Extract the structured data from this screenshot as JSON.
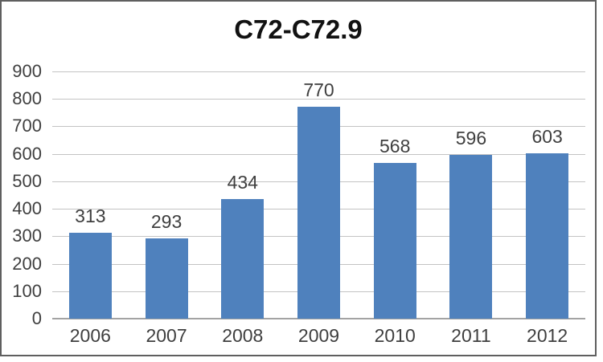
{
  "chart_data": {
    "type": "bar",
    "title": "C72-C72.9",
    "categories": [
      "2006",
      "2007",
      "2008",
      "2009",
      "2010",
      "2011",
      "2012"
    ],
    "values": [
      313,
      293,
      434,
      770,
      568,
      596,
      603
    ],
    "data_labels_visible": true,
    "xlabel": "",
    "ylabel": "",
    "ylim": [
      0,
      900
    ],
    "yticks": [
      0,
      100,
      200,
      300,
      400,
      500,
      600,
      700,
      800,
      900
    ],
    "grid": true,
    "legend": "none"
  },
  "colors": {
    "bar": "#4f81bd",
    "gridline": "#c3c3c3",
    "axis_line": "#a3a3a3",
    "tick_text": "#3f3f3f",
    "title_text": "#111111",
    "frame_border": "#5f5f5f",
    "background": "#ffffff"
  }
}
